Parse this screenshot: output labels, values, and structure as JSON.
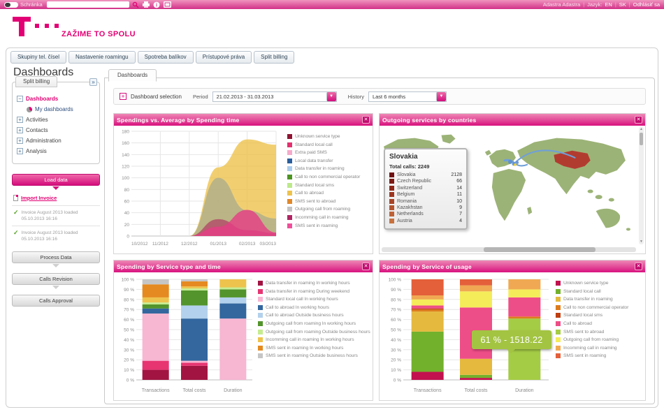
{
  "topbar": {
    "mailbox_label": "Schránka",
    "search_value": "",
    "user_name": "Adastra Adastra",
    "language_label": "Jazyk:",
    "lang_en": "EN",
    "lang_sk": "SK",
    "logout_label": "Odhlásiť sa"
  },
  "brand": {
    "slogan": "ZAŽIME TO SPOLU"
  },
  "nav_tabs": [
    {
      "label": "Skupiny tel. čísel"
    },
    {
      "label": "Nastavenie roamingu"
    },
    {
      "label": "Spotreba balíkov"
    },
    {
      "label": "Prístupové práva"
    },
    {
      "label": "Split billing"
    }
  ],
  "page_title": "Dashboards",
  "sidebar": {
    "panel_tab": "Split billing",
    "collapse_glyph": "»",
    "tree": {
      "dashboards": "Dashboards",
      "my_dashboards": "My dashboards",
      "activities": "Activities",
      "contacts": "Contacts",
      "administration": "Administration",
      "analysis": "Analysis"
    },
    "load_data_label": "Load data",
    "import_invoice_label": "Import Invoice",
    "invoices": [
      {
        "text": "Invoice August 2013 loaded",
        "date": "05.10.2013 16:16"
      },
      {
        "text": "Invoice August 2013 loaded",
        "date": "05.10.2013 16:16"
      }
    ],
    "process_data_label": "Process Data",
    "calls_revision_label": "Calls Revision",
    "calls_approval_label": "Calls Approval"
  },
  "content": {
    "card_tab": "Dashboards",
    "selection": {
      "label": "Dashboard selection",
      "period_label": "Period",
      "period_value": "21.02.2013 - 31.03.2013",
      "history_label": "History",
      "history_value": "Last 6 months"
    }
  },
  "colors": {
    "brand": "#e20074"
  },
  "chart_data": [
    {
      "type": "area",
      "title": "Spendings vs. Average by Spending time",
      "x": [
        "10/2012",
        "11/2012",
        "12/2012",
        "01/2013",
        "02/2013",
        "03/2013"
      ],
      "ylim": [
        0,
        180
      ],
      "ytick_step": 20,
      "grid": true,
      "legend_position": "right",
      "legend": [
        {
          "label": "Unknown service type",
          "color": "#8e1433"
        },
        {
          "label": "Standard local call",
          "color": "#e2316e"
        },
        {
          "label": "Extra paid SMS",
          "color": "#f6aacb"
        },
        {
          "label": "Local data transfer",
          "color": "#2a5e9c"
        },
        {
          "label": "Data transfer in roaming",
          "color": "#aacbeb"
        },
        {
          "label": "Call to non commercial operator",
          "color": "#4d9422"
        },
        {
          "label": "Standard local sms",
          "color": "#bce98a"
        },
        {
          "label": "Call to abroad",
          "color": "#eec34d"
        },
        {
          "label": "SMS sent to abroad",
          "color": "#e0882a"
        },
        {
          "label": "Outgoing call from roaming",
          "color": "#c3c3c3"
        },
        {
          "label": "Incomming call in roaming",
          "color": "#b02563"
        },
        {
          "label": "SMS sent in roaming",
          "color": "#ef4f9a"
        }
      ],
      "series": [
        {
          "name": "Call to abroad",
          "color": "#eec34d",
          "opacity": 0.8,
          "values": [
            0,
            0,
            0,
            118,
            166,
            157
          ]
        },
        {
          "name": "Outgoing call from roaming",
          "color": "#a8ab8e",
          "opacity": 0.75,
          "values": [
            0,
            0,
            0,
            100,
            44,
            30
          ]
        },
        {
          "name": "Incomming call in roaming",
          "color": "#b25069",
          "opacity": 0.85,
          "values": [
            0,
            0,
            0,
            29,
            10,
            5
          ]
        },
        {
          "name": "SMS sent in roaming",
          "color": "#e63c85",
          "opacity": 0.8,
          "values": [
            0,
            0,
            0,
            16,
            45,
            6
          ]
        }
      ]
    },
    {
      "type": "map",
      "title": "Outgoing services by countries",
      "land_color": "#9cb377",
      "highlight_color": "#b23b30",
      "route_color": "#6f9fd8",
      "highlighted_region": "Kazakhstan",
      "tooltip": {
        "title": "Slovakia",
        "subtitle": "Total calls: 2249",
        "rows": [
          {
            "country": "Slovakia",
            "value": "2128",
            "color": "#6f1012"
          },
          {
            "country": "Czech Republic",
            "value": "66",
            "color": "#7e1a14"
          },
          {
            "country": "Switzerland",
            "value": "14",
            "color": "#8f2718"
          },
          {
            "country": "Belgium",
            "value": "11",
            "color": "#9c351f"
          },
          {
            "country": "Romania",
            "value": "10",
            "color": "#a84427"
          },
          {
            "country": "Kazakhstan",
            "value": "9",
            "color": "#b3532e"
          },
          {
            "country": "Netherlands",
            "value": "7",
            "color": "#bd6236"
          },
          {
            "country": "Austria",
            "value": "4",
            "color": "#c7713e"
          }
        ]
      }
    },
    {
      "type": "bar",
      "stacked": true,
      "title": "Spending by Service type and time",
      "ylim": [
        0,
        100
      ],
      "ytick_step": 10,
      "ytick_suffix": " %",
      "legend": [
        {
          "label": "Data transfer in roaming In working hours",
          "color": "#a21543"
        },
        {
          "label": "Data transfer in roaming During weekend",
          "color": "#e73572"
        },
        {
          "label": "Standard local call In working hours",
          "color": "#f7b6d2"
        },
        {
          "label": "Call to abroad In working hours",
          "color": "#33679e"
        },
        {
          "label": "Call to abroad Outside business hours",
          "color": "#b3d1ec"
        },
        {
          "label": "Outgoing call from roaming In working hours",
          "color": "#53942c"
        },
        {
          "label": "Outgoing call from roaming Outside business hours",
          "color": "#c6ec91"
        },
        {
          "label": "Incomming call in roaming In working hours",
          "color": "#eec34d"
        },
        {
          "label": "SMS sent in roaming In working hours",
          "color": "#e58a20"
        },
        {
          "label": "SMS sent in roaming Outside business hours",
          "color": "#c6c6c6"
        }
      ],
      "bars": [
        {
          "category": "Transactions",
          "segments": [
            {
              "label": "Data transfer in roaming In working hours",
              "color": "#a21543",
              "value": 10
            },
            {
              "label": "Data transfer in roaming During weekend",
              "color": "#e73572",
              "value": 9
            },
            {
              "label": "Standard local call In working hours",
              "color": "#f7b6d2",
              "value": 47
            },
            {
              "label": "Call to abroad In working hours",
              "color": "#33679e",
              "value": 5
            },
            {
              "label": "Outgoing call from roaming In working hours",
              "color": "#53942c",
              "value": 4
            },
            {
              "label": "Outgoing call from roaming Outside business hours",
              "color": "#c6ec91",
              "value": 2
            },
            {
              "label": "Incomming call in roaming In working hours",
              "color": "#eec34d",
              "value": 5
            },
            {
              "label": "SMS sent in roaming In working hours",
              "color": "#e58a20",
              "value": 13
            },
            {
              "label": "SMS sent in roaming Outside business hours",
              "color": "#c6c6c6",
              "value": 5
            }
          ]
        },
        {
          "category": "Total costs",
          "segments": [
            {
              "label": "Data transfer in roaming In working hours",
              "color": "#a21543",
              "value": 14
            },
            {
              "label": "Data transfer in roaming During weekend",
              "color": "#e73572",
              "value": 3
            },
            {
              "label": "Standard local call In working hours",
              "color": "#f7b6d2",
              "value": 2
            },
            {
              "label": "Call to abroad In working hours",
              "color": "#33679e",
              "value": 42
            },
            {
              "label": "Call to abroad Outside business hours",
              "color": "#b3d1ec",
              "value": 13
            },
            {
              "label": "Outgoing call from roaming In working hours",
              "color": "#53942c",
              "value": 15
            },
            {
              "label": "Outgoing call from roaming Outside business hours",
              "color": "#c6ec91",
              "value": 2
            },
            {
              "label": "Incomming call in roaming In working hours",
              "color": "#eec34d",
              "value": 2
            },
            {
              "label": "SMS sent in roaming In working hours",
              "color": "#e58a20",
              "value": 5
            },
            {
              "label": "SMS sent in roaming Outside business hours",
              "color": "#c6c6c6",
              "value": 2
            }
          ]
        },
        {
          "category": "Duration",
          "segments": [
            {
              "label": "Standard local call In working hours",
              "color": "#f7b6d2",
              "value": 61
            },
            {
              "label": "Call to abroad In working hours",
              "color": "#33679e",
              "value": 15
            },
            {
              "label": "Call to abroad Outside business hours",
              "color": "#b3d1ec",
              "value": 6
            },
            {
              "label": "Outgoing call from roaming In working hours",
              "color": "#53942c",
              "value": 8
            },
            {
              "label": "Outgoing call from roaming Outside business hours",
              "color": "#c6ec91",
              "value": 2
            },
            {
              "label": "Incomming call in roaming In working hours",
              "color": "#eec34d",
              "value": 8
            }
          ]
        }
      ]
    },
    {
      "type": "bar",
      "stacked": true,
      "title": "Spending by Service of usage",
      "ylim": [
        0,
        100
      ],
      "ytick_step": 10,
      "ytick_suffix": " %",
      "tooltip": {
        "text": "61 % - 1518.22",
        "percent": "61 %",
        "value": "1518.22"
      },
      "legend": [
        {
          "label": "Unknown service type",
          "color": "#c2114e"
        },
        {
          "label": "Standard local call",
          "color": "#72b12c"
        },
        {
          "label": "Data transfer in roaming",
          "color": "#e5b93e"
        },
        {
          "label": "Call to non commercial operator",
          "color": "#dd7b1c"
        },
        {
          "label": "Standard local sms",
          "color": "#bf3f10"
        },
        {
          "label": "Call to abroad",
          "color": "#ee4e87"
        },
        {
          "label": "SMS sent to abroad",
          "color": "#a5cc45"
        },
        {
          "label": "Outgoing call from roaming",
          "color": "#f5ec5a"
        },
        {
          "label": "Incomming call in roaming",
          "color": "#f0a952"
        },
        {
          "label": "SMS sent in roaming",
          "color": "#e4603a"
        }
      ],
      "bars": [
        {
          "category": "Transactions",
          "segments": [
            {
              "label": "Unknown service type",
              "color": "#c2114e",
              "value": 8
            },
            {
              "label": "Standard local call",
              "color": "#72b12c",
              "value": 40
            },
            {
              "label": "Data transfer in roaming",
              "color": "#e5b93e",
              "value": 20
            },
            {
              "label": "Call to non commercial operator",
              "color": "#dd7b1c",
              "value": 2
            },
            {
              "label": "Standard local sms",
              "color": "#bf3f10",
              "value": 1
            },
            {
              "label": "Call to abroad",
              "color": "#ee4e87",
              "value": 3
            },
            {
              "label": "Outgoing call from roaming",
              "color": "#f5ec5a",
              "value": 6
            },
            {
              "label": "Incomming call in roaming",
              "color": "#f0a952",
              "value": 4
            },
            {
              "label": "SMS sent in roaming",
              "color": "#e4603a",
              "value": 16
            }
          ]
        },
        {
          "category": "Total costs",
          "segments": [
            {
              "label": "Unknown service type",
              "color": "#c2114e",
              "value": 2
            },
            {
              "label": "Standard local call",
              "color": "#72b12c",
              "value": 3
            },
            {
              "label": "Data transfer in roaming",
              "color": "#e5b93e",
              "value": 16
            },
            {
              "label": "Call to abroad",
              "color": "#ee4e87",
              "value": 51
            },
            {
              "label": "Outgoing call from roaming",
              "color": "#f5ec5a",
              "value": 16
            },
            {
              "label": "Incomming call in roaming",
              "color": "#f0a952",
              "value": 6
            },
            {
              "label": "SMS sent in roaming",
              "color": "#e4603a",
              "value": 6
            }
          ]
        },
        {
          "category": "Duration",
          "segments": [
            {
              "label": "SMS sent to abroad",
              "color": "#a5cc45",
              "value": 61
            },
            {
              "label": "Call to non commercial operator",
              "color": "#dd7b1c",
              "value": 2
            },
            {
              "label": "Call to abroad",
              "color": "#ee4e87",
              "value": 19
            },
            {
              "label": "Outgoing call from roaming",
              "color": "#f5ec5a",
              "value": 8
            },
            {
              "label": "Incomming call in roaming",
              "color": "#f0a952",
              "value": 10
            }
          ]
        }
      ]
    }
  ]
}
